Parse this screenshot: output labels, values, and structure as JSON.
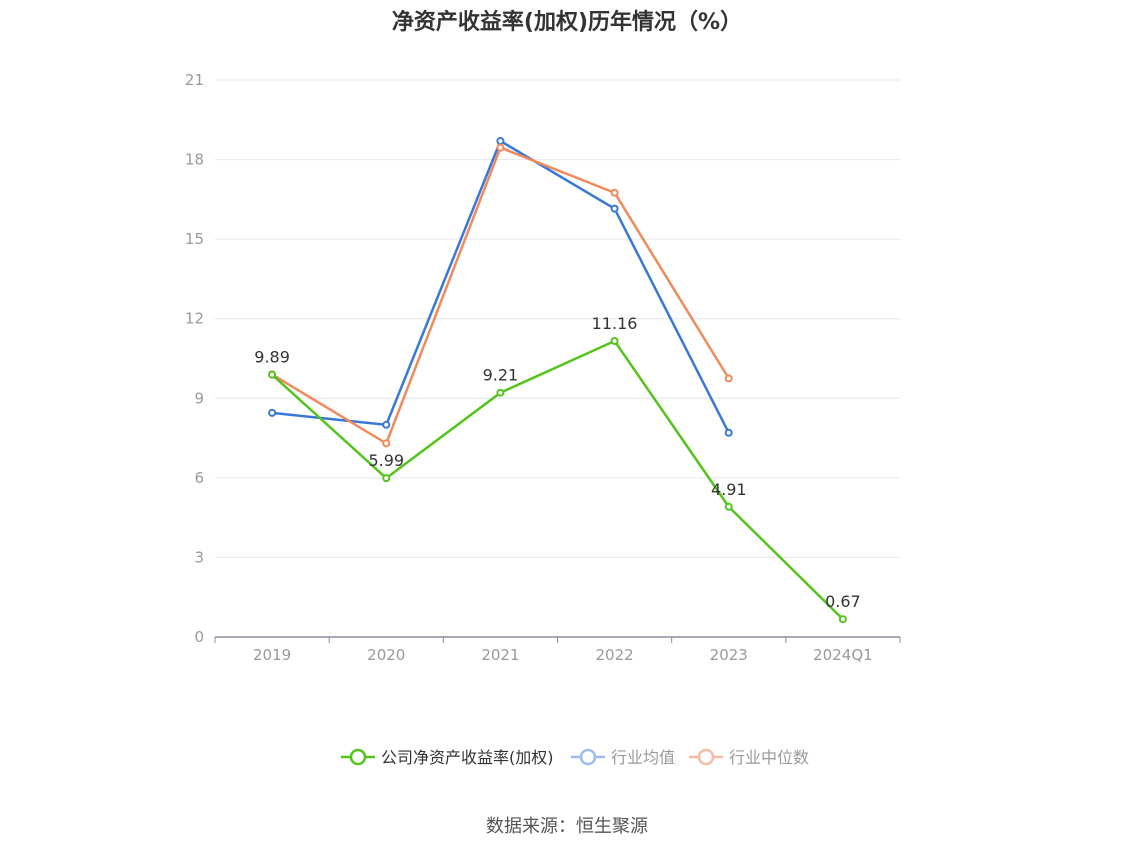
{
  "chart_data": {
    "type": "line",
    "title": "净资产收益率(加权)历年情况（%）",
    "categories": [
      "2019",
      "2020",
      "2021",
      "2022",
      "2023",
      "2024Q1"
    ],
    "ylim": [
      0,
      21
    ],
    "yticks": [
      "0",
      "3",
      "6",
      "9",
      "12",
      "15",
      "18",
      "21"
    ],
    "grid": true,
    "legend_position": "bottom",
    "series": [
      {
        "name": "公司净资产收益率(加权)",
        "color": "#52c41a",
        "values": [
          9.89,
          5.99,
          9.21,
          11.16,
          4.91,
          0.67
        ],
        "labels": [
          "9.89",
          "5.99",
          "9.21",
          "11.16",
          "4.91",
          "0.67"
        ]
      },
      {
        "name": "行业均值",
        "color": "#3a78d8",
        "values": [
          8.45,
          8.0,
          18.7,
          16.15,
          7.7,
          null
        ]
      },
      {
        "name": "行业中位数",
        "color": "#f08a5d",
        "values": [
          9.9,
          7.3,
          18.45,
          16.75,
          9.75,
          null
        ]
      }
    ]
  },
  "source": "数据来源：恒生聚源"
}
